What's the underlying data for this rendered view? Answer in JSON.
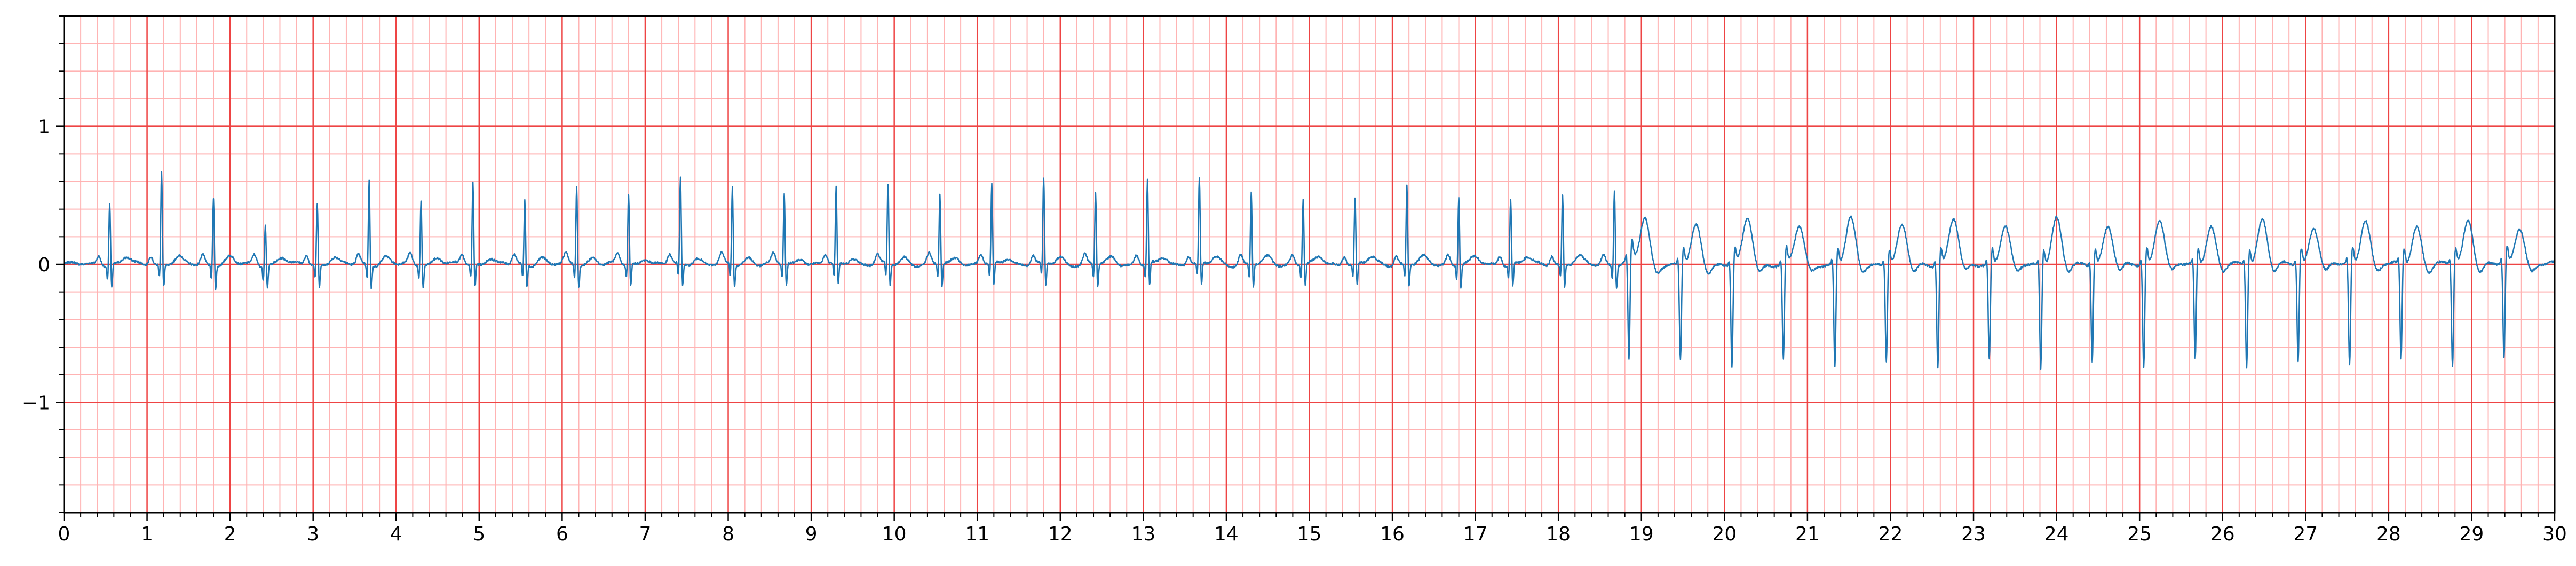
{
  "chart_data": {
    "type": "line",
    "title": "",
    "xlabel": "",
    "ylabel": "",
    "xlim": [
      0,
      30
    ],
    "ylim": [
      -1.8,
      1.8
    ],
    "x_ticks": [
      "0",
      "1",
      "2",
      "3",
      "4",
      "5",
      "6",
      "7",
      "8",
      "9",
      "10",
      "11",
      "12",
      "13",
      "14",
      "15",
      "16",
      "17",
      "18",
      "19",
      "20",
      "21",
      "22",
      "23",
      "24",
      "25",
      "26",
      "27",
      "28",
      "29",
      "30"
    ],
    "y_ticks": [
      {
        "value": -1,
        "label": "−1"
      },
      {
        "value": 0,
        "label": "0"
      },
      {
        "value": 1,
        "label": "1"
      }
    ],
    "grid": {
      "major": {
        "x_step": 1,
        "y_step": 1,
        "color": "#ee4444"
      },
      "minor": {
        "x_step": 0.2,
        "y_step": 0.2,
        "color": "#ffb3b3"
      }
    },
    "series": [
      {
        "color": "#1f77b4",
        "segments": [
          {
            "from": 0,
            "to": 18.8,
            "rr": 0.625,
            "first": 0.55,
            "pattern": "narrow",
            "amps": [
              0.45,
              0.68,
              0.49,
              0.3,
              0.45,
              0.62,
              0.48,
              0.6,
              0.47,
              0.57,
              0.51,
              0.62,
              0.56,
              0.52,
              0.55,
              0.58,
              0.51,
              0.57,
              0.62,
              0.52,
              0.61,
              0.62,
              0.52,
              0.48,
              0.47,
              0.58,
              0.5,
              0.48,
              0.51,
              0.56
            ]
          },
          {
            "from": 18.8,
            "to": 30,
            "rr": 0.62,
            "first": 18.85,
            "pattern": "alternating",
            "amps": [
              0.53,
              0.44
            ]
          }
        ]
      }
    ]
  }
}
